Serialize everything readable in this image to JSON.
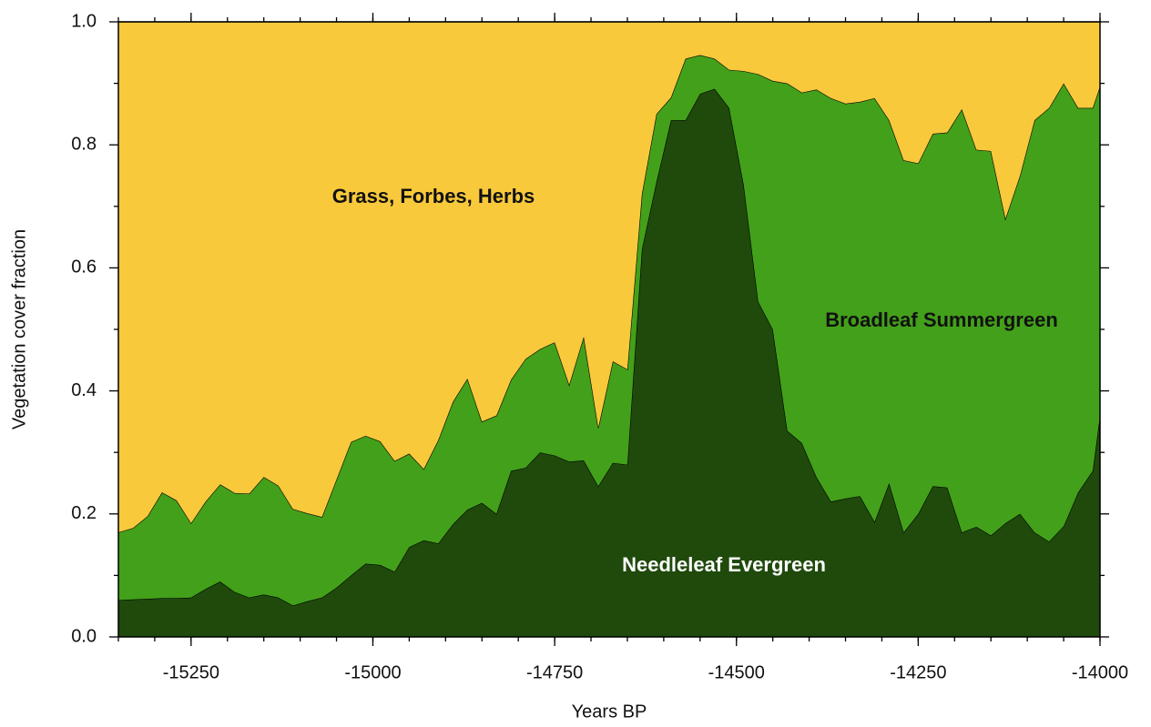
{
  "chart_data": {
    "type": "stacked_area",
    "xlabel": "Years BP",
    "ylabel": "Vegetation cover fraction",
    "x": [
      -15350,
      -15330,
      -15310,
      -15290,
      -15270,
      -15250,
      -15230,
      -15210,
      -15190,
      -15170,
      -15150,
      -15130,
      -15110,
      -15090,
      -15070,
      -15050,
      -15030,
      -15010,
      -14990,
      -14970,
      -14950,
      -14930,
      -14910,
      -14890,
      -14870,
      -14850,
      -14830,
      -14810,
      -14790,
      -14770,
      -14750,
      -14730,
      -14710,
      -14690,
      -14670,
      -14650,
      -14630,
      -14610,
      -14590,
      -14570,
      -14550,
      -14530,
      -14510,
      -14490,
      -14470,
      -14450,
      -14430,
      -14410,
      -14390,
      -14370,
      -14350,
      -14330,
      -14310,
      -14290,
      -14270,
      -14250,
      -14230,
      -14210,
      -14190,
      -14170,
      -14150,
      -14130,
      -14110,
      -14090,
      -14070,
      -14050,
      -14030,
      -14010,
      -14000
    ],
    "series": [
      {
        "name": "Needleleaf Evergreen",
        "color": "#1f4a0c",
        "label_color": "#ffffff",
        "values": [
          0.06,
          0.061,
          0.062,
          0.063,
          0.063,
          0.064,
          0.078,
          0.09,
          0.073,
          0.064,
          0.069,
          0.064,
          0.051,
          0.058,
          0.064,
          0.08,
          0.1,
          0.119,
          0.117,
          0.106,
          0.146,
          0.157,
          0.152,
          0.183,
          0.207,
          0.218,
          0.2,
          0.27,
          0.275,
          0.3,
          0.295,
          0.285,
          0.287,
          0.245,
          0.283,
          0.28,
          0.63,
          0.74,
          0.84,
          0.84,
          0.883,
          0.891,
          0.86,
          0.735,
          0.545,
          0.5,
          0.335,
          0.315,
          0.26,
          0.22,
          0.225,
          0.229,
          0.187,
          0.25,
          0.17,
          0.2,
          0.245,
          0.243,
          0.17,
          0.179,
          0.165,
          0.185,
          0.2,
          0.17,
          0.155,
          0.18,
          0.235,
          0.27,
          0.36
        ]
      },
      {
        "name": "Broadleaf Summergreen",
        "color": "#43a01a",
        "label_color": "#111111",
        "values": [
          0.11,
          0.116,
          0.134,
          0.172,
          0.159,
          0.121,
          0.142,
          0.158,
          0.161,
          0.169,
          0.191,
          0.182,
          0.157,
          0.143,
          0.131,
          0.176,
          0.217,
          0.208,
          0.201,
          0.18,
          0.152,
          0.116,
          0.168,
          0.199,
          0.213,
          0.132,
          0.16,
          0.148,
          0.177,
          0.168,
          0.184,
          0.125,
          0.201,
          0.095,
          0.165,
          0.155,
          0.09,
          0.11,
          0.037,
          0.1,
          0.063,
          0.049,
          0.062,
          0.185,
          0.37,
          0.404,
          0.565,
          0.57,
          0.63,
          0.656,
          0.642,
          0.641,
          0.689,
          0.59,
          0.605,
          0.57,
          0.573,
          0.577,
          0.688,
          0.613,
          0.625,
          0.495,
          0.55,
          0.67,
          0.705,
          0.72,
          0.625,
          0.59,
          0.535
        ]
      },
      {
        "name": "Grass, Forbes, Herbs",
        "color": "#f9c93c",
        "label_color": "#111111",
        "values": [
          0.83,
          0.823,
          0.804,
          0.765,
          0.778,
          0.815,
          0.78,
          0.752,
          0.766,
          0.767,
          0.74,
          0.754,
          0.792,
          0.799,
          0.805,
          0.744,
          0.683,
          0.673,
          0.682,
          0.714,
          0.702,
          0.727,
          0.68,
          0.618,
          0.58,
          0.65,
          0.64,
          0.582,
          0.548,
          0.532,
          0.521,
          0.59,
          0.512,
          0.66,
          0.552,
          0.565,
          0.28,
          0.15,
          0.123,
          0.06,
          0.054,
          0.06,
          0.078,
          0.08,
          0.085,
          0.096,
          0.1,
          0.115,
          0.11,
          0.124,
          0.133,
          0.13,
          0.124,
          0.16,
          0.225,
          0.23,
          0.182,
          0.18,
          0.142,
          0.208,
          0.21,
          0.32,
          0.25,
          0.16,
          0.14,
          0.1,
          0.14,
          0.14,
          0.105
        ]
      }
    ],
    "xlim": [
      -15350,
      -14000
    ],
    "ylim": [
      0,
      1
    ],
    "xticks": [
      -15250,
      -15000,
      -14750,
      -14500,
      -14250,
      -14000
    ],
    "yticks": [
      {
        "value": 0,
        "label": "0.0"
      },
      0.2,
      0.4,
      0.6,
      0.8,
      {
        "value": 1,
        "label": "1.0"
      }
    ]
  }
}
